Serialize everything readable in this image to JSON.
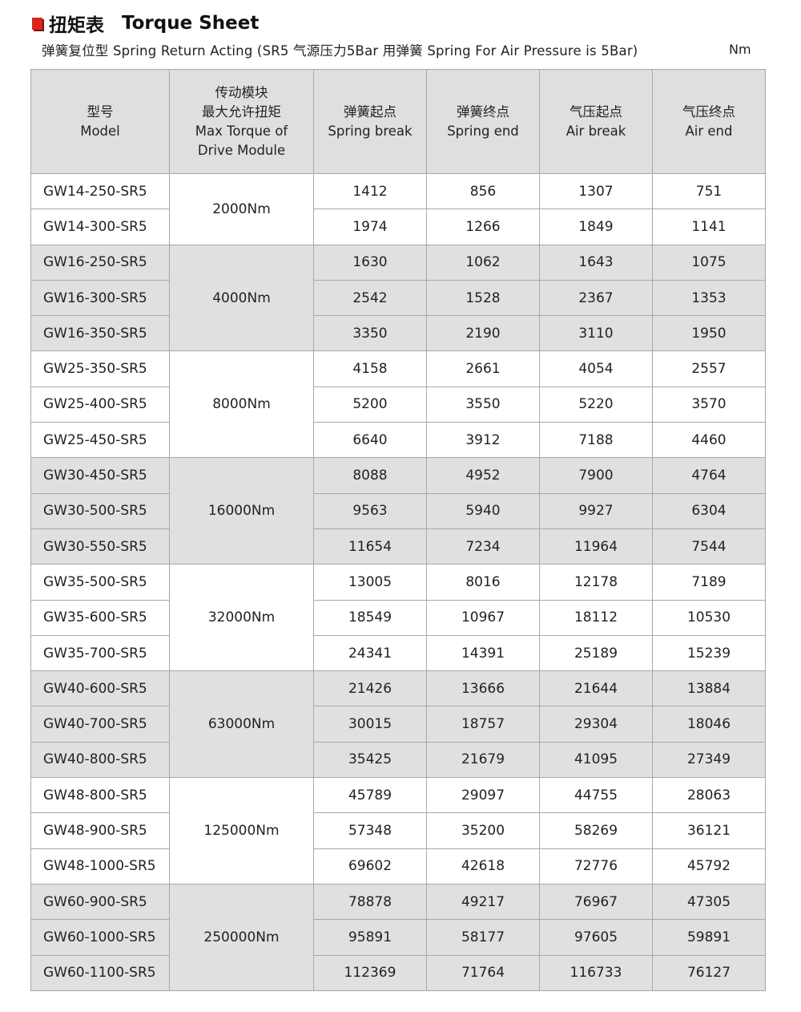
{
  "title": {
    "zh": "扭矩表",
    "en": "Torque Sheet",
    "accent_color": "#d9261c"
  },
  "subtitle": "弹簧复位型 Spring Return Acting (SR5 气源压力5Bar 用弹簧 Spring For Air Pressure is 5Bar)",
  "unit": "Nm",
  "headers": [
    [
      "型号",
      "Model"
    ],
    [
      "传动模块",
      "最大允许扭矩",
      "Max Torque of",
      "Drive Module"
    ],
    [
      "弹簧起点",
      "Spring break"
    ],
    [
      "弹簧终点",
      "Spring end"
    ],
    [
      "气压起点",
      "Air break"
    ],
    [
      "气压终点",
      "Air end"
    ]
  ],
  "groups": [
    {
      "max_torque": "2000Nm",
      "rows": [
        [
          "GW14-250-SR5",
          "1412",
          "856",
          "1307",
          "751"
        ],
        [
          "GW14-300-SR5",
          "1974",
          "1266",
          "1849",
          "1141"
        ]
      ]
    },
    {
      "max_torque": "4000Nm",
      "rows": [
        [
          "GW16-250-SR5",
          "1630",
          "1062",
          "1643",
          "1075"
        ],
        [
          "GW16-300-SR5",
          "2542",
          "1528",
          "2367",
          "1353"
        ],
        [
          "GW16-350-SR5",
          "3350",
          "2190",
          "3110",
          "1950"
        ]
      ]
    },
    {
      "max_torque": "8000Nm",
      "rows": [
        [
          "GW25-350-SR5",
          "4158",
          "2661",
          "4054",
          "2557"
        ],
        [
          "GW25-400-SR5",
          "5200",
          "3550",
          "5220",
          "3570"
        ],
        [
          "GW25-450-SR5",
          "6640",
          "3912",
          "7188",
          "4460"
        ]
      ]
    },
    {
      "max_torque": "16000Nm",
      "rows": [
        [
          "GW30-450-SR5",
          "8088",
          "4952",
          "7900",
          "4764"
        ],
        [
          "GW30-500-SR5",
          "9563",
          "5940",
          "9927",
          "6304"
        ],
        [
          "GW30-550-SR5",
          "11654",
          "7234",
          "11964",
          "7544"
        ]
      ]
    },
    {
      "max_torque": "32000Nm",
      "rows": [
        [
          "GW35-500-SR5",
          "13005",
          "8016",
          "12178",
          "7189"
        ],
        [
          "GW35-600-SR5",
          "18549",
          "10967",
          "18112",
          "10530"
        ],
        [
          "GW35-700-SR5",
          "24341",
          "14391",
          "25189",
          "15239"
        ]
      ]
    },
    {
      "max_torque": "63000Nm",
      "rows": [
        [
          "GW40-600-SR5",
          "21426",
          "13666",
          "21644",
          "13884"
        ],
        [
          "GW40-700-SR5",
          "30015",
          "18757",
          "29304",
          "18046"
        ],
        [
          "GW40-800-SR5",
          "35425",
          "21679",
          "41095",
          "27349"
        ]
      ]
    },
    {
      "max_torque": "125000Nm",
      "rows": [
        [
          "GW48-800-SR5",
          "45789",
          "29097",
          "44755",
          "28063"
        ],
        [
          "GW48-900-SR5",
          "57348",
          "35200",
          "58269",
          "36121"
        ],
        [
          "GW48-1000-SR5",
          "69602",
          "42618",
          "72776",
          "45792"
        ]
      ]
    },
    {
      "max_torque": "250000Nm",
      "rows": [
        [
          "GW60-900-SR5",
          "78878",
          "49217",
          "76967",
          "47305"
        ],
        [
          "GW60-1000-SR5",
          "95891",
          "58177",
          "97605",
          "59891"
        ],
        [
          "GW60-1100-SR5",
          "112369",
          "71764",
          "116733",
          "76127"
        ]
      ]
    }
  ]
}
